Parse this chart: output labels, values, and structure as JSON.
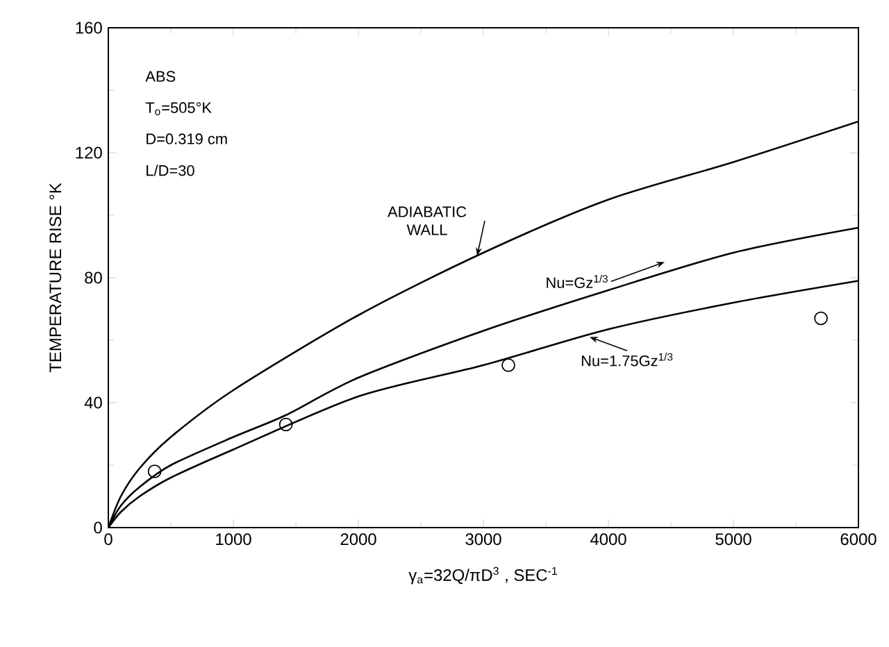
{
  "chart_data": {
    "type": "line",
    "xlabel": "γ$_{a}$=32Q/πD$^{3}$ , SEC$^{-1}$",
    "ylabel": "TEMPERATURE RISE °K",
    "xlim": [
      0,
      6000
    ],
    "ylim": [
      0,
      160
    ],
    "xticks": [
      0,
      1000,
      2000,
      3000,
      4000,
      5000,
      6000
    ],
    "yticks": [
      0,
      40,
      80,
      120,
      160
    ],
    "annotations": [
      "ABS",
      "T$_{o}$=505°K",
      "D=0.319 cm",
      "L/D=30"
    ],
    "series": [
      {
        "name": "ADIABATIC WALL",
        "color": "#000000",
        "x": [
          0,
          100,
          250,
          500,
          1000,
          2000,
          3000,
          4000,
          5000,
          6000
        ],
        "values": [
          0,
          10,
          19,
          29,
          44,
          68,
          88,
          105,
          117,
          130
        ]
      },
      {
        "name": "Nu=Gz$^{1/3}$",
        "color": "#000000",
        "x": [
          0,
          100,
          250,
          500,
          1000,
          1420,
          2000,
          3000,
          4000,
          5000,
          6000
        ],
        "values": [
          0,
          7,
          13,
          20,
          29,
          36,
          48,
          63,
          76,
          88,
          96
        ]
      },
      {
        "name": "Nu=1.75Gz$^{1/3}$",
        "color": "#000000",
        "x": [
          0,
          100,
          250,
          500,
          1000,
          2000,
          3000,
          4000,
          5000,
          6000
        ],
        "values": [
          0,
          5,
          10,
          16,
          25,
          42,
          52,
          63.5,
          72,
          79
        ]
      },
      {
        "type": "scatter",
        "color": "#000000",
        "marker": "circle",
        "x": [
          370,
          1420,
          3200,
          5700
        ],
        "values": [
          18,
          33,
          52,
          67
        ]
      }
    ]
  }
}
